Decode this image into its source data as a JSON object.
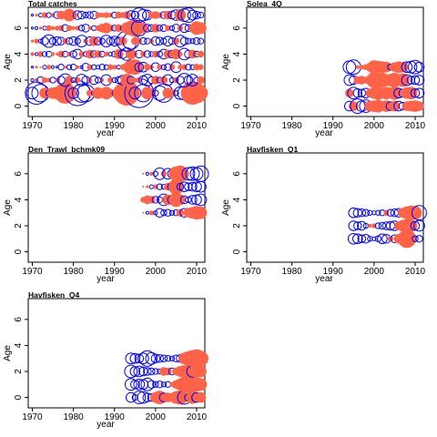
{
  "colors": {
    "positive": "#FF6347",
    "negative": "#0000FF",
    "frame": "#000000"
  },
  "chart_data": [
    {
      "type": "scatter",
      "title": "Total catches",
      "xlabel": "year",
      "ylabel": "Age",
      "xlim": [
        1969,
        2012
      ],
      "ylim": [
        -0.8,
        7.6
      ],
      "xticks": [
        1970,
        1980,
        1990,
        2000,
        2010
      ],
      "yticks": [
        0,
        2,
        4,
        6
      ],
      "x": [
        1970,
        1971,
        1972,
        1973,
        1974,
        1975,
        1976,
        1977,
        1978,
        1979,
        1980,
        1981,
        1982,
        1983,
        1984,
        1985,
        1986,
        1987,
        1988,
        1989,
        1990,
        1991,
        1992,
        1993,
        1994,
        1995,
        1996,
        1997,
        1998,
        1999,
        2000,
        2001,
        2002,
        2003,
        2004,
        2005,
        2006,
        2007,
        2008,
        2009,
        2010,
        2011
      ],
      "series": [
        {
          "age": 1,
          "residuals": [
            -1.2,
            -2.3,
            -1.8,
            1.1,
            -0.6,
            1.2,
            1.3,
            0.9,
            2.2,
            1.5,
            -1.1,
            -2.6,
            -1.9,
            -1.8,
            0.7,
            -0.5,
            1.2,
            0.8,
            1.3,
            0.9,
            -0.5,
            1.2,
            2.0,
            2.6,
            1.8,
            -1.2,
            -3.0,
            -1.8,
            1.3,
            0.9,
            -0.6,
            -1.5,
            -1.9,
            1.1,
            0.8,
            -0.5,
            -1.3,
            -1.4,
            1.2,
            2.4,
            2.1,
            1.5
          ]
        },
        {
          "age": 2,
          "residuals": [
            -0.3,
            0.4,
            -0.7,
            0.6,
            0.5,
            -0.6,
            0.4,
            -0.8,
            -1.3,
            0.9,
            -0.5,
            0.6,
            -1.2,
            -0.8,
            0.5,
            -0.9,
            -0.6,
            0.4,
            -1.1,
            0.6,
            -0.5,
            -0.7,
            -1.0,
            1.3,
            -0.8,
            0.5,
            0.6,
            -0.9,
            -1.2,
            -0.7,
            0.9,
            -0.6,
            0.8,
            -1.1,
            -0.5,
            0.6,
            -0.8,
            -1.4,
            -0.9,
            -1.2,
            -0.6,
            0.8
          ]
        },
        {
          "age": 3,
          "residuals": [
            -0.2,
            0.3,
            0.2,
            -0.4,
            0.5,
            -0.3,
            -0.2,
            -0.6,
            0.3,
            -0.5,
            -0.6,
            0.4,
            -0.3,
            -0.8,
            0.6,
            -0.5,
            -0.4,
            -0.6,
            -0.5,
            0.6,
            0.5,
            -0.4,
            0.6,
            0.9,
            1.5,
            1.6,
            -0.9,
            -1.0,
            0.7,
            0.5,
            -0.9,
            0.6,
            -0.5,
            -0.7,
            0.6,
            -1.1,
            0.5,
            0.6,
            -0.6,
            -0.5,
            0.7,
            0.6
          ]
        },
        {
          "age": 4,
          "residuals": [
            0.4,
            -0.3,
            0.6,
            -0.5,
            -0.6,
            0.4,
            0.3,
            0.7,
            -0.6,
            0.5,
            -0.7,
            -1.0,
            0.6,
            -0.5,
            0.9,
            -0.7,
            0.8,
            -0.6,
            0.5,
            -0.4,
            -0.6,
            1.0,
            -0.9,
            -1.3,
            1.1,
            0.5,
            -0.8,
            0.6,
            -0.7,
            -0.5,
            0.7,
            -0.6,
            -1.0,
            0.9,
            -0.8,
            1.1,
            0.5,
            -1.2,
            -0.8,
            0.9,
            -0.6,
            0.7
          ]
        },
        {
          "age": 5,
          "residuals": [
            0.3,
            0.5,
            -0.4,
            -0.8,
            -1.3,
            -0.7,
            -0.9,
            -0.8,
            0.6,
            -0.7,
            -0.9,
            -0.6,
            -1.2,
            0.5,
            -0.9,
            1.0,
            -0.8,
            -0.6,
            -1.2,
            -0.8,
            -1.0,
            -0.8,
            0.9,
            -2.1,
            -1.7,
            0.8,
            0.6,
            -0.7,
            -0.6,
            0.5,
            -0.9,
            -0.8,
            -0.6,
            -1.0,
            -0.7,
            0.7,
            -1.2,
            -0.8,
            -0.6,
            -0.5,
            -0.7,
            -0.6
          ]
        },
        {
          "age": 6,
          "residuals": [
            -0.2,
            -0.3,
            0.3,
            -0.4,
            0.6,
            0.4,
            0.5,
            0.6,
            -0.7,
            0.6,
            0.4,
            0.5,
            -0.6,
            -0.8,
            0.4,
            -0.5,
            0.6,
            0.9,
            1.1,
            0.7,
            -0.6,
            0.8,
            -0.5,
            1.2,
            1.5,
            1.8,
            -1.6,
            1.1,
            -0.8,
            -0.7,
            0.9,
            -0.6,
            -0.7,
            0.6,
            -0.5,
            -0.8,
            0.6,
            -0.9,
            -0.7,
            0.8,
            1.4,
            1.2
          ]
        },
        {
          "age": 7,
          "residuals": [
            -0.2,
            0.3,
            -0.4,
            0.6,
            -0.5,
            0.4,
            -0.7,
            0.9,
            0.7,
            1.3,
            0.8,
            -0.9,
            -0.8,
            -0.6,
            -0.7,
            -0.8,
            0.6,
            0.5,
            0.6,
            0.5,
            -0.6,
            0.7,
            0.6,
            0.8,
            -0.9,
            -0.8,
            -1.5,
            -1.2,
            -1.0,
            0.7,
            0.8,
            0.6,
            -0.7,
            0.9,
            -0.8,
            -1.1,
            1.2,
            -1.3,
            -1.5,
            -1.0,
            -0.8,
            -0.6
          ]
        }
      ]
    },
    {
      "type": "scatter",
      "title": "Solea_4Q",
      "xlabel": "year",
      "ylabel": "Age",
      "xlim": [
        1969,
        2012
      ],
      "ylim": [
        -0.8,
        7.6
      ],
      "xticks": [
        1970,
        1980,
        1990,
        2000,
        2010
      ],
      "yticks": [
        0,
        2,
        4,
        6
      ],
      "x": [
        1994,
        1995,
        1996,
        1997,
        1998,
        1999,
        2000,
        2001,
        2002,
        2003,
        2004,
        2005,
        2006,
        2007,
        2008,
        2009,
        2010,
        2011
      ],
      "series": [
        {
          "age": 0,
          "residuals": [
            -1.0,
            1.0,
            -1.5,
            -1.1,
            -1.3,
            1.1,
            1.2,
            1.3,
            1.0,
            1.2,
            -0.9,
            1.1,
            -1.0,
            -0.8,
            1.0,
            1.1,
            1.2,
            1.0
          ]
        },
        {
          "age": 1,
          "residuals": [
            0.9,
            -1.2,
            -0.9,
            -0.8,
            -1.0,
            0.9,
            1.2,
            1.4,
            1.1,
            1.3,
            1.1,
            1.4,
            -1.0,
            -0.8,
            1.2,
            1.3,
            -0.9,
            -1.0
          ]
        },
        {
          "age": 2,
          "residuals": [
            -1.1,
            -0.9,
            0.8,
            0.9,
            0.7,
            1.0,
            1.6,
            1.3,
            1.5,
            1.2,
            1.3,
            1.5,
            1.2,
            1.4,
            -1.1,
            -0.8,
            -0.9,
            -1.0
          ]
        },
        {
          "age": 3,
          "residuals": [
            -1.3,
            -1.5,
            0.4,
            0.5,
            0.6,
            0.9,
            1.4,
            1.3,
            1.2,
            1.1,
            -0.6,
            1.0,
            1.2,
            1.1,
            -1.1,
            -1.2,
            -1.4,
            -1.0
          ]
        }
      ]
    },
    {
      "type": "scatter",
      "title": "Den_Trawl_bchmk09",
      "xlabel": "year",
      "ylabel": "Age",
      "xlim": [
        1969,
        2012
      ],
      "ylim": [
        -0.8,
        7.6
      ],
      "xticks": [
        1970,
        1980,
        1990,
        2000,
        2010
      ],
      "yticks": [
        0,
        2,
        4,
        6
      ],
      "x": [
        1997,
        1998,
        1999,
        2000,
        2001,
        2002,
        2003,
        2004,
        2005,
        2006,
        2007,
        2008,
        2009,
        2010,
        2011
      ],
      "series": [
        {
          "age": 3,
          "residuals": [
            0.2,
            -0.3,
            0.5,
            -0.4,
            -0.9,
            -0.6,
            -0.7,
            -0.5,
            -0.6,
            0.8,
            -0.9,
            1.0,
            1.2,
            1.4,
            1.3
          ]
        },
        {
          "age": 4,
          "residuals": [
            0.6,
            0.9,
            0.8,
            -0.7,
            -0.6,
            -1.2,
            1.1,
            -0.9,
            1.5,
            1.1,
            -0.8,
            -0.6,
            -0.9,
            -1.0,
            -1.2
          ]
        },
        {
          "age": 5,
          "residuals": [
            0.2,
            0.3,
            -0.4,
            0.5,
            -0.6,
            -0.5,
            0.8,
            -0.9,
            1.6,
            -0.7,
            -1.0,
            -0.8,
            -0.9,
            -1.0,
            -1.1
          ]
        },
        {
          "age": 6,
          "residuals": [
            0.2,
            -0.3,
            0.4,
            -0.5,
            -1.2,
            0.6,
            -1.1,
            -0.9,
            1.5,
            1.7,
            1.0,
            -1.3,
            -1.4,
            -1.3,
            -1.6
          ]
        }
      ]
    },
    {
      "type": "scatter",
      "title": "Havfisken_Q1",
      "xlabel": "year",
      "ylabel": "Age",
      "xlim": [
        1969,
        2012
      ],
      "ylim": [
        -0.8,
        7.6
      ],
      "xticks": [
        1970,
        1980,
        1990,
        2000,
        2010
      ],
      "yticks": [
        0,
        2,
        4,
        6
      ],
      "x": [
        1995,
        1996,
        1997,
        1998,
        1999,
        2000,
        2001,
        2002,
        2003,
        2004,
        2005,
        2006,
        2007,
        2008,
        2009,
        2010,
        2011
      ],
      "series": [
        {
          "age": 1,
          "residuals": [
            -1.1,
            -1.0,
            -0.8,
            -0.9,
            -0.5,
            -0.4,
            -0.6,
            -1.0,
            -0.9,
            0.6,
            -0.8,
            1.0,
            1.1,
            1.9,
            1.2,
            -0.6,
            -0.7
          ]
        },
        {
          "age": 2,
          "residuals": [
            -1.0,
            -0.8,
            -0.9,
            -0.5,
            0.4,
            0.5,
            -0.6,
            -0.7,
            -0.8,
            -0.9,
            -1.0,
            0.9,
            1.2,
            1.4,
            1.3,
            -0.9,
            -1.1
          ]
        },
        {
          "age": 3,
          "residuals": [
            -1.0,
            -0.9,
            -0.8,
            -0.7,
            -0.5,
            -0.4,
            -0.5,
            -0.6,
            0.6,
            -0.7,
            -0.8,
            -0.9,
            1.0,
            1.3,
            1.5,
            1.4,
            -1.5
          ]
        }
      ]
    },
    {
      "type": "scatter",
      "title": "Havfisken_Q4",
      "xlabel": "year",
      "ylabel": "Age",
      "xlim": [
        1969,
        2012
      ],
      "ylim": [
        -0.8,
        7.6
      ],
      "xticks": [
        1970,
        1980,
        1990,
        2000,
        2010
      ],
      "yticks": [
        0,
        2,
        4,
        6
      ],
      "x": [
        1994,
        1995,
        1996,
        1997,
        1998,
        1999,
        2000,
        2001,
        2002,
        2003,
        2004,
        2005,
        2006,
        2007,
        2008,
        2009,
        2010,
        2011
      ],
      "series": [
        {
          "age": 0,
          "residuals": [
            -1.0,
            -0.6,
            -1.3,
            -1.2,
            -0.9,
            -0.8,
            1.1,
            1.4,
            -0.9,
            1.0,
            0.9,
            1.3,
            1.5,
            -1.4,
            -0.8,
            1.3,
            -1.0,
            1.1
          ]
        },
        {
          "age": 1,
          "residuals": [
            -1.2,
            -0.9,
            -1.1,
            -1.0,
            -1.3,
            -0.8,
            -0.6,
            -0.7,
            -0.5,
            -0.6,
            0.5,
            0.9,
            1.2,
            1.6,
            1.8,
            1.6,
            1.5,
            1.3
          ]
        },
        {
          "age": 2,
          "residuals": [
            -1.3,
            -1.0,
            -1.1,
            -0.9,
            -0.8,
            -0.7,
            -0.6,
            -0.5,
            0.9,
            0.8,
            -0.7,
            0.8,
            1.1,
            1.3,
            1.4,
            -1.2,
            1.3,
            1.2
          ]
        },
        {
          "age": 3,
          "residuals": [
            -1.1,
            -1.0,
            -0.9,
            -1.1,
            -1.6,
            -1.2,
            -0.9,
            -0.8,
            -0.7,
            -0.6,
            -0.5,
            -0.7,
            -0.8,
            1.2,
            1.5,
            1.7,
            1.9,
            1.6
          ]
        }
      ]
    }
  ]
}
